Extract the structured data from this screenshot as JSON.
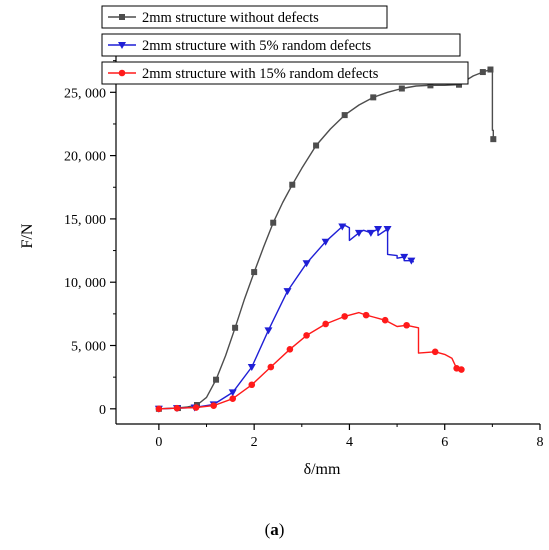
{
  "chart_data": {
    "type": "line",
    "xlabel": "δ/mm",
    "ylabel": "F/N",
    "xlim": [
      -0.9,
      8
    ],
    "ylim": [
      -1200,
      28500
    ],
    "x_ticks": [
      0,
      2,
      4,
      6,
      8
    ],
    "y_ticks": [
      0,
      5000,
      10000,
      15000,
      20000,
      25000
    ],
    "y_tick_labels": [
      "0",
      "5, 000",
      "10, 000",
      "15, 000",
      "20, 000",
      "25, 000"
    ],
    "legend_position": "top",
    "grid": false,
    "series": [
      {
        "name": "2mm structure without defects",
        "color": "#4d4d4d",
        "marker": "square",
        "x": [
          0,
          0.2,
          0.4,
          0.6,
          0.8,
          1.0,
          1.2,
          1.4,
          1.6,
          1.8,
          2.0,
          2.2,
          2.4,
          2.6,
          2.8,
          3.0,
          3.3,
          3.6,
          3.9,
          4.2,
          4.5,
          4.8,
          5.1,
          5.4,
          5.7,
          6.0,
          6.3,
          6.6,
          6.8,
          6.96,
          7.0,
          7.0,
          7.02,
          7.02
        ],
        "y": [
          0,
          30,
          60,
          150,
          300,
          900,
          2300,
          4200,
          6400,
          8700,
          10800,
          12800,
          14700,
          16300,
          17700,
          19000,
          20800,
          22100,
          23200,
          24000,
          24600,
          25000,
          25300,
          25500,
          25550,
          25550,
          25600,
          26300,
          26600,
          26800,
          26700,
          22000,
          22000,
          21300
        ],
        "marker_every": [
          0,
          2,
          4,
          6,
          8,
          10,
          12,
          14,
          16,
          18,
          20,
          22,
          24,
          26,
          28,
          29,
          33
        ]
      },
      {
        "name": "2mm structure with 5% random defects",
        "color": "#1f1fd6",
        "marker": "triangle-down",
        "x": [
          0,
          0.38,
          0.75,
          1.15,
          1.55,
          1.95,
          2.3,
          2.7,
          3.1,
          3.5,
          3.85,
          3.9,
          4.0,
          4.0,
          4.2,
          4.3,
          4.45,
          4.6,
          4.6,
          4.8,
          4.8,
          5.0,
          5.0,
          5.15,
          5.15,
          5.3,
          5.35
        ],
        "y": [
          0,
          50,
          100,
          350,
          1300,
          3300,
          6200,
          9300,
          11500,
          13200,
          14400,
          14500,
          14300,
          13300,
          13900,
          14100,
          13900,
          14200,
          13700,
          14200,
          12200,
          12100,
          11900,
          12000,
          11700,
          11700,
          11600
        ],
        "marker_every": [
          0,
          1,
          2,
          3,
          4,
          5,
          6,
          7,
          8,
          9,
          10,
          14,
          16,
          17,
          19,
          23,
          25
        ]
      },
      {
        "name": "2mm structure with 15% random defects",
        "color": "#ff1a1a",
        "marker": "circle",
        "x": [
          0,
          0.38,
          0.78,
          1.15,
          1.55,
          1.95,
          2.35,
          2.75,
          3.1,
          3.5,
          3.9,
          4.2,
          4.35,
          4.5,
          4.75,
          5.0,
          5.2,
          5.45,
          5.45,
          5.8,
          6.0,
          6.15,
          6.25,
          6.35
        ],
        "y": [
          0,
          50,
          100,
          250,
          800,
          1900,
          3300,
          4700,
          5800,
          6700,
          7300,
          7600,
          7400,
          7250,
          7000,
          6500,
          6600,
          6400,
          4400,
          4500,
          4300,
          4000,
          3200,
          3100
        ],
        "marker_every": [
          0,
          1,
          2,
          3,
          4,
          5,
          6,
          7,
          8,
          9,
          10,
          12,
          14,
          16,
          19,
          22,
          23
        ]
      }
    ]
  },
  "caption": "(a)",
  "caption_letter": "a"
}
